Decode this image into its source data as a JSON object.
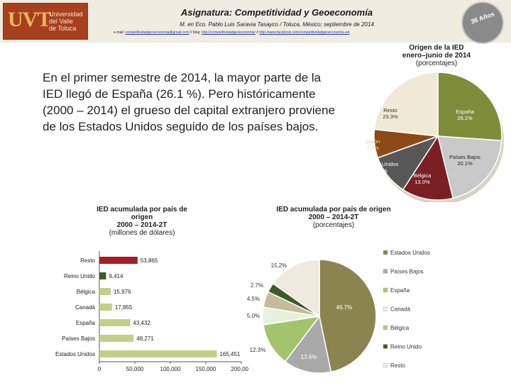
{
  "header": {
    "logo_mark": "UVT",
    "logo_text": [
      "Universidad",
      "del Valle",
      "de Toluca"
    ],
    "title": "Asignatura: Competitividad y Geoeconomía",
    "subtitle": "M. en Eco. Pablo Luis Saravia Tasayco / Toluca, México; septiembre de 2014",
    "links_label": "e-mail:",
    "links": [
      "competitividadgeoeconomia@gmail.com",
      "// blog:",
      "http://competitividadgeoeconomia/",
      "//",
      "http://www.facebook.com/competitividadgeoeconomia.uvt"
    ],
    "seal": "36 Años"
  },
  "main": {
    "body_text": "En el primer semestre de 2014, la mayor parte de la IED llegó de España (26.1 %). Pero históricamente (2000 – 2014) el grueso del capital extranjero proviene de los Estados Unidos seguido de los países bajos."
  },
  "chart_data": [
    {
      "type": "pie",
      "title": "Origen de la IED",
      "subtitle": "enero–junio de 2014",
      "unit_label": "(porcentajes)",
      "labels": [
        "España",
        "Países Bajos",
        "Bélgica",
        "Estados Unidos",
        "Japón",
        "Resto"
      ],
      "values": [
        26.1,
        20.1,
        13.0,
        10.3,
        7.2,
        23.3
      ],
      "value_labels": [
        "26.1%",
        "20.1%",
        "13.0%",
        "10.3%",
        "7.2%",
        "23.3%"
      ],
      "colors": [
        "#7f8c3a",
        "#c9c9c9",
        "#7a2024",
        "#575757",
        "#8c4a16",
        "#efe9d6"
      ]
    },
    {
      "type": "bar",
      "orientation": "horizontal",
      "title": "IED acumulada por país de origen",
      "subtitle": "2000 – 2014-2T",
      "unit_label": "(millones de dólares)",
      "categories": [
        "Resto",
        "Reino Unido",
        "Bélgica",
        "Canadá",
        "España",
        "Países Bajos",
        "Estados Unidos"
      ],
      "values": [
        53865,
        9414,
        15976,
        17855,
        43432,
        48271,
        165451
      ],
      "value_labels": [
        "53,865",
        "9,414",
        "15,976",
        "17,855",
        "43,432",
        "48,271",
        "165,451"
      ],
      "colors": [
        "#a81c24",
        "#3f5a26",
        "#c3cf86",
        "#c3cf86",
        "#c3cf86",
        "#c3cf86",
        "#c3cf86"
      ],
      "xlim": [
        0,
        200000
      ],
      "xticks": [
        0,
        50000,
        100000,
        150000,
        200000
      ],
      "xtick_labels": [
        "0",
        "50,000",
        "100,000",
        "150,000",
        "200,000"
      ]
    },
    {
      "type": "pie",
      "title": "IED acumulada por país de origen",
      "subtitle": "2000 – 2014-2T",
      "unit_label": "(porcentajes)",
      "labels": [
        "Estados Unidos",
        "Países Bajos",
        "España",
        "Canadá",
        "Bélgica",
        "Reino Unido",
        "Resto"
      ],
      "values": [
        46.7,
        13.6,
        12.3,
        5.0,
        4.5,
        2.7,
        15.2
      ],
      "value_labels": [
        "46.7%",
        "13.6%",
        "12.3%",
        "5.0%",
        "4.5%",
        "2.7%",
        "15.2%"
      ],
      "colors": [
        "#8a8550",
        "#a9a9a9",
        "#a3c46c",
        "#e9f0de",
        "#c4bb9a",
        "#3f5a26",
        "#eeeae0"
      ],
      "legend_position": "right"
    }
  ]
}
